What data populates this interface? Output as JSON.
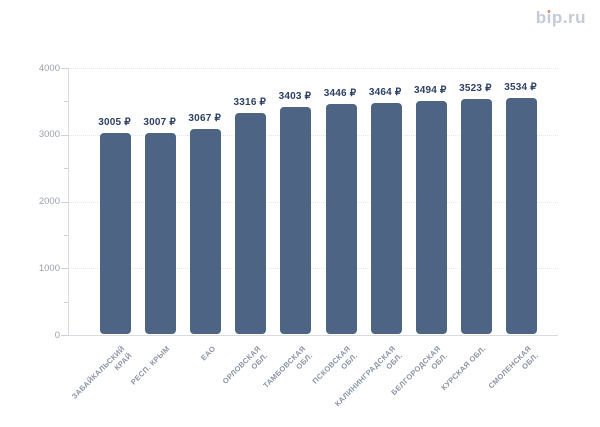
{
  "logo": {
    "text": "bip.ru",
    "color": "#c5cad7",
    "dot_color": "#ec8a6c"
  },
  "chart_data": {
    "type": "bar",
    "title": "",
    "xlabel": "",
    "ylabel": "",
    "currency": "₽",
    "categories": [
      "ЗАБАЙКАЛЬСКИЙ КРАЙ",
      "РЕСП. КРЫМ",
      "ЕАО",
      "ОРЛОВСКАЯ ОБЛ.",
      "ТАМБОВСКАЯ ОБЛ.",
      "ПСКОВСКАЯ ОБЛ.",
      "КАЛИНИНГРАДСКАЯ ОБЛ.",
      "БЕЛГОРОДСКАЯ ОБЛ.",
      "КУРСКАЯ ОБЛ.",
      "СМОЛЕНСКАЯ ОБЛ."
    ],
    "category_lines": [
      [
        "ЗАБАЙКАЛЬСКИЙ",
        "КРАЙ"
      ],
      [
        "РЕСП. КРЫМ"
      ],
      [
        "ЕАО"
      ],
      [
        "ОРЛОВСКАЯ",
        "ОБЛ."
      ],
      [
        "ТАМБОВСКАЯ",
        "ОБЛ."
      ],
      [
        "ПСКОВСКАЯ",
        "ОБЛ."
      ],
      [
        "КАЛИНИНГРАДСКАЯ",
        "ОБЛ."
      ],
      [
        "БЕЛГОРОДСКАЯ",
        "ОБЛ."
      ],
      [
        "КУРСКАЯ ОБЛ."
      ],
      [
        "СМОЛЕНСКАЯ",
        "ОБЛ."
      ]
    ],
    "values": [
      3005,
      3007,
      3067,
      3316,
      3403,
      3446,
      3464,
      3494,
      3523,
      3534
    ],
    "value_labels": [
      "3005 ₽",
      "3007 ₽",
      "3067 ₽",
      "3316 ₽",
      "3403 ₽",
      "3446 ₽",
      "3464 ₽",
      "3494 ₽",
      "3523 ₽",
      "3534 ₽"
    ],
    "ylim": [
      0,
      4000
    ],
    "y_ticks": [
      0,
      1000,
      2000,
      3000,
      4000
    ],
    "y_minor_ticks": [
      500,
      1500,
      2500,
      3500
    ],
    "grid": "horizontal dotted lines at major ticks",
    "legend": "none",
    "bar_color": "#4d6484",
    "value_label_color": "#2e4166",
    "y_tick_label_color": "#9aa1ae",
    "category_label_color": "#8b93a6"
  }
}
